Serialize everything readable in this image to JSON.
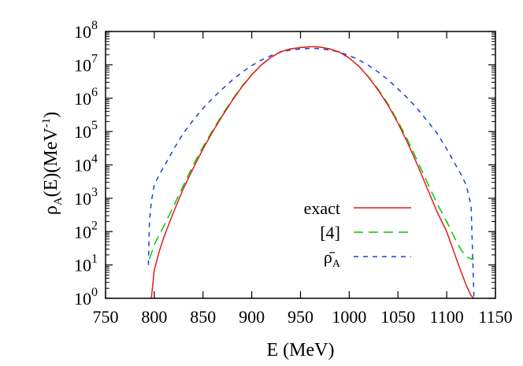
{
  "chart_data": {
    "type": "line",
    "xlabel": "E (MeV)",
    "ylabel": {
      "base": "ρ",
      "sub": "A",
      "mid": "(E)(MeV",
      "sup": "-1",
      "end": ")"
    },
    "xlim": [
      750,
      1150
    ],
    "ylim": [
      1,
      100000000
    ],
    "yscale": "log",
    "grid": false,
    "legend_position": "lower-right",
    "x_ticks": [
      750,
      800,
      850,
      900,
      950,
      1000,
      1050,
      1100,
      1150
    ],
    "x_tick_labels": [
      "750",
      "800",
      "850",
      "900",
      "950",
      "1000",
      "1050",
      "1100",
      "1150"
    ],
    "y_ticks": [
      {
        "value": 1,
        "base": "10",
        "exp": "0"
      },
      {
        "value": 10,
        "base": "10",
        "exp": "1"
      },
      {
        "value": 100,
        "base": "10",
        "exp": "2"
      },
      {
        "value": 1000,
        "base": "10",
        "exp": "3"
      },
      {
        "value": 10000,
        "base": "10",
        "exp": "4"
      },
      {
        "value": 100000,
        "base": "10",
        "exp": "5"
      },
      {
        "value": 1000000,
        "base": "10",
        "exp": "6"
      },
      {
        "value": 10000000,
        "base": "10",
        "exp": "7"
      },
      {
        "value": 100000000,
        "base": "10",
        "exp": "8"
      }
    ],
    "series": [
      {
        "name": "exact",
        "color": "#e41a1c",
        "dash": "solid",
        "x": [
          797,
          800,
          805,
          810,
          820,
          830,
          840,
          850,
          860,
          870,
          880,
          890,
          900,
          910,
          920,
          930,
          940,
          950,
          960,
          965,
          970,
          980,
          990,
          1000,
          1010,
          1020,
          1030,
          1040,
          1050,
          1060,
          1070,
          1080,
          1090,
          1100,
          1110,
          1115,
          1120,
          1125,
          1128
        ],
        "y": [
          1,
          7,
          25,
          70,
          400,
          2000,
          8000,
          30000,
          100000,
          300000,
          850000,
          2200000,
          5000000,
          10000000,
          17000000,
          25000000,
          30000000,
          33000000,
          35000000,
          35000000,
          34000000,
          30000000,
          24000000,
          16000000,
          9000000,
          4200000,
          1700000,
          600000,
          180000,
          45000,
          10000,
          2000,
          400,
          100,
          15,
          6,
          2.5,
          1.2,
          1
        ]
      },
      {
        "name": "[4]",
        "color": "#00cc00",
        "dash": "long-dash",
        "x": [
          795,
          800,
          805,
          810,
          820,
          830,
          840,
          850,
          860,
          870,
          880,
          890,
          900,
          910,
          920,
          930,
          940,
          950,
          960,
          965,
          970,
          980,
          990,
          1000,
          1010,
          1020,
          1030,
          1040,
          1050,
          1060,
          1070,
          1080,
          1090,
          1100,
          1110,
          1115,
          1120,
          1125,
          1128
        ],
        "y": [
          15,
          40,
          80,
          150,
          600,
          2500,
          10000,
          35000,
          110000,
          330000,
          900000,
          2300000,
          5100000,
          10000000,
          17000000,
          25000000,
          30000000,
          33000000,
          35000000,
          35000000,
          34000000,
          30000000,
          24000000,
          16000000,
          9000000,
          4300000,
          1800000,
          650000,
          200000,
          55000,
          13000,
          3000,
          700,
          200,
          50,
          28,
          18,
          15,
          15
        ]
      },
      {
        "name": "ρ̄A",
        "label_base": "ρ̄",
        "label_sub": "A",
        "color": "#1f3fd6",
        "dash": "short-dash",
        "x": [
          794,
          795,
          797,
          800,
          805,
          810,
          820,
          830,
          840,
          850,
          860,
          870,
          880,
          890,
          900,
          910,
          920,
          930,
          940,
          950,
          960,
          965,
          970,
          980,
          990,
          1000,
          1010,
          1020,
          1030,
          1040,
          1050,
          1060,
          1070,
          1080,
          1090,
          1100,
          1110,
          1115,
          1120,
          1125,
          1128
        ],
        "y": [
          10,
          200,
          800,
          2500,
          5000,
          9000,
          30000,
          90000,
          220000,
          500000,
          1000000,
          1900000,
          3500000,
          6000000,
          9500000,
          14000000,
          19000000,
          24000000,
          28000000,
          30000000,
          31000000,
          31000000,
          30000000,
          28000000,
          24000000,
          19000000,
          14000000,
          9500000,
          6000000,
          3500000,
          1900000,
          1000000,
          480000,
          210000,
          90000,
          30000,
          9000,
          5000,
          2500,
          600,
          1
        ]
      }
    ]
  }
}
